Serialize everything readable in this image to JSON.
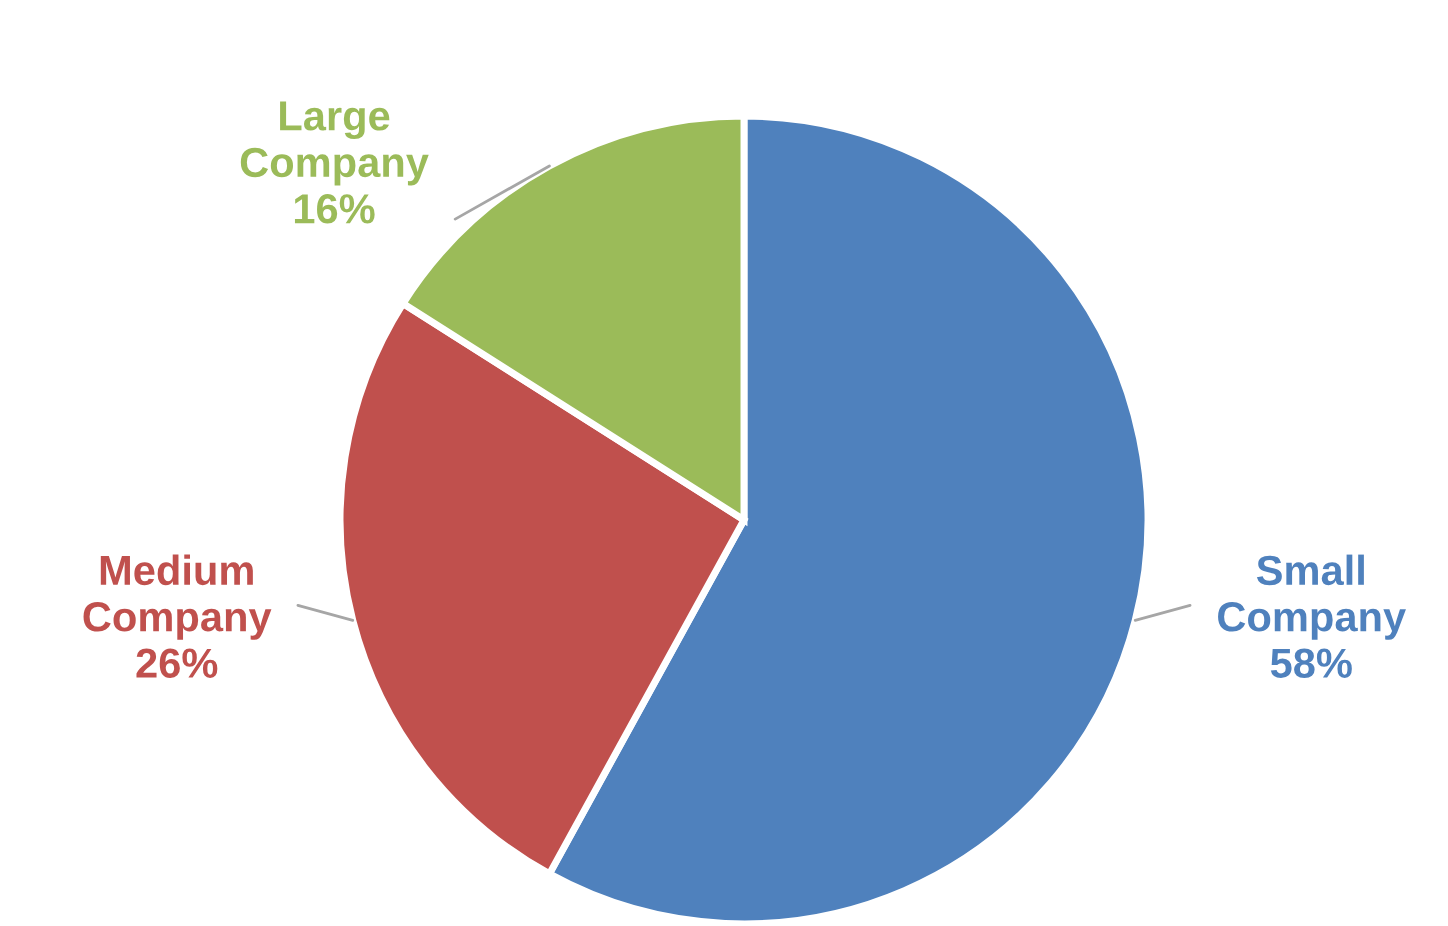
{
  "chart_data": {
    "type": "pie",
    "categories": [
      "Small\nCompany",
      "Medium\nCompany",
      "Large\nCompany"
    ],
    "values": [
      58,
      26,
      16
    ],
    "value_labels": [
      "58%",
      "26%",
      "16%"
    ],
    "colors": [
      "#4f81bd",
      "#c0504d",
      "#9bbb59"
    ]
  }
}
